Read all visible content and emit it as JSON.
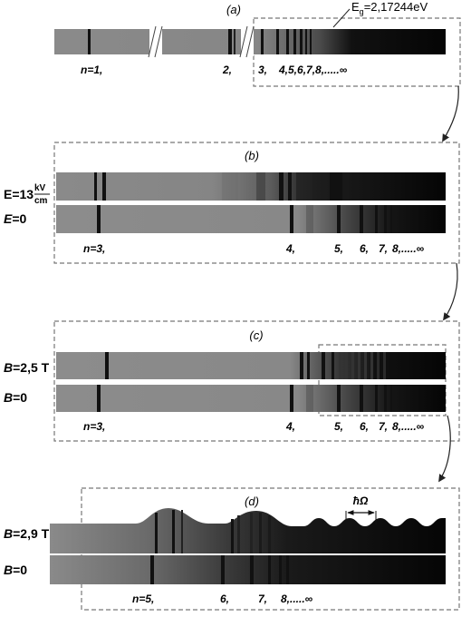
{
  "panels": {
    "a": {
      "label": "(a)",
      "gap_energy": {
        "prefix": "E",
        "sub": "g",
        "value": "=2,17244eV"
      },
      "levels": [
        "n=1,",
        "2,",
        "3,",
        "4,5,6,7,8,.....∞"
      ]
    },
    "b": {
      "label": "(b)",
      "field_row": {
        "prefix": "E=13",
        "unit_num": "kV",
        "unit_den": "cm"
      },
      "zero_row": {
        "symbol": "E",
        "rest": "=0"
      },
      "levels": [
        "n=3,",
        "4,",
        "5,",
        "6,",
        "7,",
        "8,.....∞"
      ]
    },
    "c": {
      "label": "(c)",
      "field_row": {
        "symbol": "B",
        "rest": "=2,5 T"
      },
      "zero_row": {
        "symbol": "B",
        "rest": "=0"
      },
      "levels": [
        "n=3,",
        "4,",
        "5,",
        "6,",
        "7,",
        "8,.....∞"
      ]
    },
    "d": {
      "label": "(d)",
      "field_row": {
        "symbol": "B",
        "rest": "=2,9 T"
      },
      "zero_row": {
        "symbol": "B",
        "rest": "=0"
      },
      "period_label": "ħΩ",
      "levels": [
        "n=5,",
        "6,",
        "7,",
        "8,.....∞"
      ]
    }
  },
  "colors": {
    "band_gray": "#8c8c8c",
    "line_dark": "#111111",
    "frame": "#777777",
    "arrow": "#222222"
  }
}
